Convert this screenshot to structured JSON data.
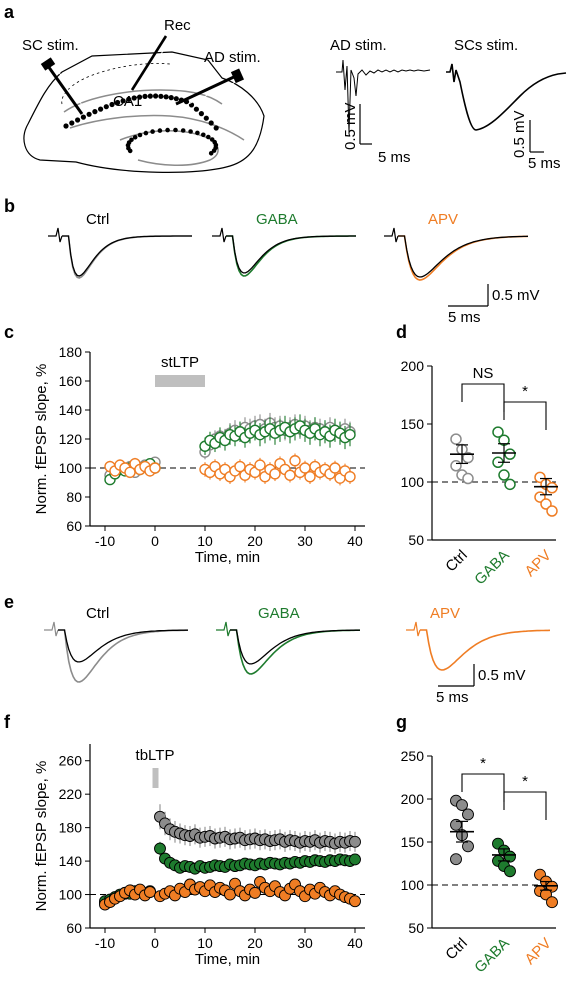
{
  "panel_labels": {
    "a": "a",
    "b": "b",
    "c": "c",
    "d": "d",
    "e": "e",
    "f": "f",
    "g": "g"
  },
  "colors": {
    "ctrl": "#8c8c8c",
    "ctrl_dark": "#6e6e6e",
    "gaba": "#1e7b2e",
    "apv": "#ef7d24",
    "baseline": "#000000",
    "bar": "#bfbfbf"
  },
  "panel_a": {
    "sc_stim": "SC stim.",
    "rec": "Rec",
    "ad_stim": "AD  stim.",
    "ca1": "CA1",
    "ad_trace_title": "AD stim.",
    "sc_trace_title": "SCs stim.",
    "scale_mv": "0.5 mV",
    "scale_ms": "5  ms",
    "scale_mv2": "0.5 mV",
    "scale_ms2": "5  ms"
  },
  "panel_b": {
    "titles": [
      "Ctrl",
      "GABA",
      "APV"
    ],
    "scale_mv": "0.5 mV",
    "scale_ms": "5 ms"
  },
  "panel_e": {
    "titles": [
      "Ctrl",
      "GABA",
      "APV"
    ],
    "scale_mv": "0.5 mV",
    "scale_ms": "5 ms"
  },
  "chart_data": [
    {
      "id": "c",
      "type": "scatter",
      "ylabel": "Norm. fEPSP slope, %",
      "xlabel": "Time, min",
      "xlim": [
        -13,
        42
      ],
      "ylim": [
        60,
        180
      ],
      "xticks": [
        -10,
        0,
        10,
        20,
        30,
        40
      ],
      "xtick_labels": [
        "-10",
        "0",
        "10",
        "20",
        "30",
        "40"
      ],
      "yticks": [
        60,
        80,
        100,
        120,
        140,
        160,
        180
      ],
      "ytick_labels": [
        "60",
        "80",
        "100",
        "120",
        "140",
        "160",
        "180"
      ],
      "annotation": "stLTP",
      "annotation_range": [
        0,
        10
      ],
      "baseline": 100,
      "series": [
        {
          "key": "ctrl",
          "marker": "open",
          "x": [
            -9,
            -8,
            -7,
            -6,
            -5,
            -4,
            -3,
            -2,
            -1,
            0,
            10,
            11,
            12,
            13,
            14,
            15,
            16,
            17,
            18,
            19,
            20,
            21,
            22,
            23,
            24,
            25,
            26,
            27,
            28,
            29,
            30,
            31,
            32,
            33,
            34,
            35,
            36,
            37,
            38,
            39
          ],
          "y": [
            95,
            98,
            100,
            99,
            101,
            97,
            100,
            102,
            100,
            104,
            111,
            116,
            120,
            122,
            121,
            124,
            126,
            125,
            128,
            127,
            129,
            130,
            127,
            131,
            128,
            129,
            126,
            128,
            130,
            127,
            129,
            126,
            128,
            127,
            125,
            128,
            126,
            124,
            127,
            125
          ],
          "err": [
            3,
            3,
            3,
            3,
            3,
            3,
            3,
            3,
            3,
            3,
            5,
            6,
            6,
            6,
            6,
            7,
            7,
            7,
            7,
            7,
            7,
            7,
            7,
            7,
            7,
            7,
            7,
            7,
            7,
            7,
            7,
            7,
            7,
            7,
            7,
            7,
            7,
            7,
            7,
            7
          ]
        },
        {
          "key": "gaba",
          "marker": "open",
          "x": [
            -9,
            -8,
            -7,
            -6,
            -5,
            -4,
            -3,
            -2,
            -1,
            0,
            10,
            11,
            12,
            13,
            14,
            15,
            16,
            17,
            18,
            19,
            20,
            21,
            22,
            23,
            24,
            25,
            26,
            27,
            28,
            29,
            30,
            31,
            32,
            33,
            34,
            35,
            36,
            37,
            38,
            39
          ],
          "y": [
            92,
            96,
            99,
            98,
            100,
            102,
            99,
            101,
            103,
            100,
            115,
            119,
            117,
            121,
            119,
            123,
            122,
            125,
            121,
            124,
            126,
            123,
            125,
            127,
            124,
            126,
            128,
            125,
            127,
            129,
            126,
            124,
            127,
            123,
            125,
            122,
            126,
            124,
            121,
            123
          ],
          "err": [
            3,
            3,
            3,
            3,
            3,
            3,
            3,
            3,
            3,
            3,
            6,
            6,
            6,
            7,
            7,
            7,
            7,
            7,
            7,
            7,
            7,
            8,
            8,
            8,
            8,
            8,
            8,
            8,
            8,
            8,
            8,
            8,
            8,
            8,
            8,
            8,
            8,
            8,
            8,
            8
          ]
        },
        {
          "key": "apv",
          "marker": "open",
          "x": [
            -9,
            -8,
            -7,
            -6,
            -5,
            -4,
            -3,
            -2,
            -1,
            0,
            10,
            11,
            12,
            13,
            14,
            15,
            16,
            17,
            18,
            19,
            20,
            21,
            22,
            23,
            24,
            25,
            26,
            27,
            28,
            29,
            30,
            31,
            32,
            33,
            34,
            35,
            36,
            37,
            38,
            39
          ],
          "y": [
            101,
            98,
            102,
            100,
            97,
            103,
            99,
            101,
            98,
            100,
            99,
            97,
            101,
            96,
            99,
            94,
            98,
            101,
            95,
            99,
            97,
            102,
            94,
            99,
            96,
            103,
            99,
            95,
            105,
            97,
            100,
            94,
            101,
            97,
            99,
            96,
            100,
            93,
            98,
            94
          ],
          "err": [
            4,
            4,
            4,
            4,
            4,
            4,
            4,
            4,
            4,
            4,
            5,
            5,
            5,
            5,
            5,
            5,
            5,
            5,
            5,
            5,
            5,
            5,
            5,
            5,
            5,
            5,
            5,
            5,
            5,
            5,
            5,
            5,
            5,
            5,
            5,
            5,
            5,
            5,
            5,
            5
          ]
        }
      ]
    },
    {
      "id": "d",
      "type": "scatter",
      "categories": [
        "Ctrl",
        "GABA",
        "APV"
      ],
      "ylim": [
        50,
        200
      ],
      "yticks": [
        50,
        100,
        150,
        200
      ],
      "ytick_labels": [
        "50",
        "100",
        "150",
        "200"
      ],
      "baseline": 100,
      "marker": "open",
      "points": [
        [
          137,
          128,
          121,
          114,
          106,
          103
        ],
        [
          143,
          136,
          124,
          117,
          106,
          98
        ],
        [
          104,
          98,
          95,
          87,
          81,
          75
        ]
      ],
      "mean": [
        124,
        125,
        96
      ],
      "sem": [
        8,
        8,
        7
      ],
      "significance": [
        {
          "from": 0,
          "to": 1,
          "label": "NS"
        },
        {
          "from": 1,
          "to": 2,
          "label": "*"
        }
      ]
    },
    {
      "id": "f",
      "type": "scatter",
      "ylabel": "Norm. fEPSP slope, %",
      "xlabel": "Time, min",
      "xlim": [
        -13,
        42
      ],
      "ylim": [
        60,
        280
      ],
      "xticks": [
        -10,
        0,
        10,
        20,
        30,
        40
      ],
      "xtick_labels": [
        "-10",
        "0",
        "10",
        "20",
        "30",
        "40"
      ],
      "yticks": [
        60,
        100,
        140,
        180,
        220,
        260
      ],
      "ytick_labels": [
        "60",
        "100",
        "140",
        "180",
        "220",
        "260"
      ],
      "annotation": "tbLTP",
      "annotation_range": [
        -0.5,
        0.5
      ],
      "baseline": 100,
      "series": [
        {
          "key": "ctrl",
          "marker": "filled",
          "x": [
            -10,
            -9,
            -8,
            -7,
            -6,
            -5,
            -4,
            -3,
            -2,
            -1,
            1,
            2,
            3,
            4,
            5,
            6,
            7,
            8,
            9,
            10,
            11,
            12,
            13,
            14,
            15,
            16,
            17,
            18,
            19,
            20,
            21,
            22,
            23,
            24,
            25,
            26,
            27,
            28,
            29,
            30,
            31,
            32,
            33,
            34,
            35,
            36,
            37,
            38,
            39,
            40
          ],
          "y": [
            90,
            93,
            96,
            99,
            101,
            103,
            102,
            105,
            100,
            103,
            193,
            185,
            178,
            175,
            173,
            171,
            170,
            172,
            168,
            169,
            170,
            167,
            168,
            169,
            166,
            167,
            168,
            165,
            166,
            167,
            165,
            166,
            164,
            165,
            166,
            163,
            165,
            164,
            162,
            164,
            163,
            165,
            162,
            164,
            163,
            161,
            163,
            162,
            164,
            163
          ],
          "err": [
            6,
            6,
            6,
            6,
            6,
            6,
            6,
            6,
            6,
            6,
            15,
            14,
            13,
            13,
            12,
            12,
            12,
            12,
            12,
            12,
            12,
            12,
            12,
            12,
            12,
            12,
            12,
            12,
            12,
            12,
            12,
            12,
            12,
            12,
            12,
            12,
            12,
            12,
            12,
            12,
            12,
            12,
            12,
            12,
            12,
            12,
            12,
            12,
            12,
            12
          ]
        },
        {
          "key": "gaba",
          "marker": "filled",
          "x": [
            -10,
            -9,
            -8,
            -7,
            -6,
            -5,
            -4,
            -3,
            -2,
            -1,
            1,
            2,
            3,
            4,
            5,
            6,
            7,
            8,
            9,
            10,
            11,
            12,
            13,
            14,
            15,
            16,
            17,
            18,
            19,
            20,
            21,
            22,
            23,
            24,
            25,
            26,
            27,
            28,
            29,
            30,
            31,
            32,
            33,
            34,
            35,
            36,
            37,
            38,
            39,
            40
          ],
          "y": [
            92,
            94,
            97,
            100,
            102,
            101,
            104,
            103,
            101,
            104,
            155,
            143,
            138,
            135,
            132,
            134,
            133,
            131,
            134,
            132,
            133,
            135,
            134,
            133,
            136,
            134,
            135,
            137,
            136,
            135,
            137,
            136,
            138,
            137,
            136,
            138,
            137,
            139,
            138,
            140,
            139,
            141,
            140,
            139,
            141,
            140,
            142,
            141,
            140,
            142
          ],
          "err": [
            5,
            5,
            5,
            5,
            5,
            5,
            5,
            5,
            5,
            5,
            8,
            7,
            7,
            6,
            6,
            6,
            6,
            6,
            6,
            6,
            6,
            6,
            6,
            6,
            6,
            6,
            6,
            6,
            6,
            6,
            6,
            6,
            6,
            6,
            6,
            6,
            6,
            6,
            6,
            6,
            6,
            6,
            6,
            6,
            6,
            6,
            6,
            6,
            6,
            6
          ]
        },
        {
          "key": "apv",
          "marker": "filled",
          "x": [
            -10,
            -9,
            -8,
            -7,
            -6,
            -5,
            -4,
            -3,
            -2,
            -1,
            1,
            2,
            3,
            4,
            5,
            6,
            7,
            8,
            9,
            10,
            11,
            12,
            13,
            14,
            15,
            16,
            17,
            18,
            19,
            20,
            21,
            22,
            23,
            24,
            25,
            26,
            27,
            28,
            29,
            30,
            31,
            32,
            33,
            34,
            35,
            36,
            37,
            38,
            39,
            40
          ],
          "y": [
            88,
            91,
            95,
            98,
            102,
            105,
            100,
            106,
            99,
            103,
            98,
            101,
            104,
            99,
            107,
            103,
            112,
            106,
            109,
            104,
            111,
            103,
            108,
            105,
            100,
            113,
            104,
            99,
            106,
            102,
            115,
            108,
            104,
            110,
            103,
            99,
            107,
            112,
            104,
            98,
            106,
            101,
            108,
            103,
            99,
            104,
            100,
            97,
            95,
            92
          ],
          "err": [
            6,
            6,
            6,
            6,
            6,
            6,
            6,
            6,
            6,
            6,
            6,
            6,
            6,
            6,
            6,
            6,
            6,
            6,
            6,
            6,
            6,
            6,
            6,
            6,
            6,
            6,
            6,
            6,
            6,
            6,
            6,
            6,
            6,
            6,
            6,
            6,
            6,
            6,
            6,
            6,
            6,
            6,
            6,
            6,
            6,
            6,
            6,
            6,
            6,
            6
          ]
        }
      ]
    },
    {
      "id": "g",
      "type": "scatter",
      "categories": [
        "Ctrl",
        "GABA",
        "APV"
      ],
      "ylim": [
        50,
        250
      ],
      "yticks": [
        50,
        100,
        150,
        200,
        250
      ],
      "ytick_labels": [
        "50",
        "100",
        "150",
        "200",
        "250"
      ],
      "baseline": 100,
      "marker": "filled",
      "points": [
        [
          198,
          193,
          182,
          170,
          158,
          145,
          130
        ],
        [
          148,
          140,
          133,
          128,
          122,
          116
        ],
        [
          112,
          104,
          98,
          93,
          89,
          80
        ]
      ],
      "mean": [
        162,
        135,
        99
      ],
      "sem": [
        12,
        7,
        5
      ],
      "significance": [
        {
          "from": 0,
          "to": 1,
          "label": "*"
        },
        {
          "from": 1,
          "to": 2,
          "label": "*"
        }
      ]
    }
  ]
}
